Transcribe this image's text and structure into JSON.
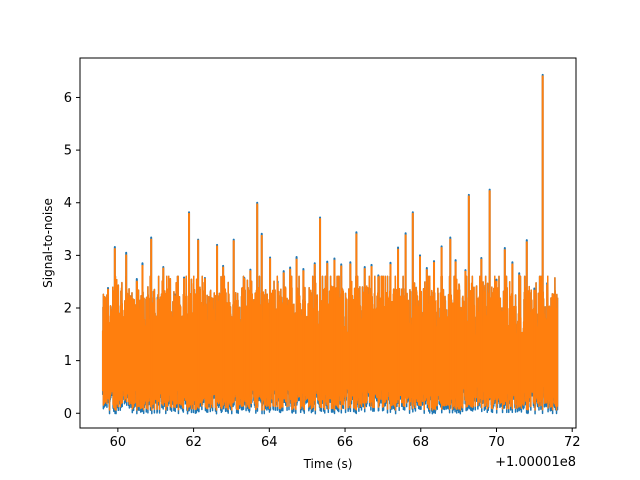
{
  "chart_data": {
    "type": "line",
    "title": "",
    "xlabel": "Time (s)",
    "ylabel": "Signal-to-noise",
    "x_offset_label": "+1.00001e8",
    "xlim": [
      59.0,
      72.1
    ],
    "ylim": [
      -0.28,
      6.75
    ],
    "xticks": [
      60,
      62,
      64,
      66,
      68,
      70,
      72
    ],
    "yticks": [
      0,
      1,
      2,
      3,
      4,
      5,
      6
    ],
    "grid": false,
    "x_range": [
      59.6,
      71.62
    ],
    "series": [
      {
        "color": "#1f77b4",
        "peaks": [
          [
            59.63,
            1.3
          ],
          [
            59.74,
            2.38
          ],
          [
            59.92,
            3.16
          ],
          [
            60.22,
            3.05
          ],
          [
            60.35,
            2.22
          ],
          [
            60.5,
            2.55
          ],
          [
            60.65,
            2.85
          ],
          [
            60.88,
            3.34
          ],
          [
            61.05,
            2.2
          ],
          [
            61.2,
            2.78
          ],
          [
            61.5,
            2.26
          ],
          [
            61.75,
            2.58
          ],
          [
            61.88,
            3.82
          ],
          [
            62.12,
            3.3
          ],
          [
            62.3,
            2.57
          ],
          [
            62.62,
            3.2
          ],
          [
            62.78,
            2.8
          ],
          [
            63.06,
            3.3
          ],
          [
            63.34,
            2.57
          ],
          [
            63.5,
            2.73
          ],
          [
            63.68,
            4.0
          ],
          [
            63.8,
            3.41
          ],
          [
            64.02,
            2.96
          ],
          [
            64.22,
            2.5
          ],
          [
            64.38,
            2.7
          ],
          [
            64.55,
            2.77
          ],
          [
            64.72,
            2.97
          ],
          [
            64.9,
            2.74
          ],
          [
            65.2,
            2.85
          ],
          [
            65.34,
            3.72
          ],
          [
            65.53,
            2.88
          ],
          [
            65.72,
            2.94
          ],
          [
            65.9,
            2.83
          ],
          [
            66.14,
            2.87
          ],
          [
            66.3,
            3.44
          ],
          [
            66.52,
            2.78
          ],
          [
            66.7,
            2.82
          ],
          [
            66.88,
            2.62
          ],
          [
            67.2,
            2.86
          ],
          [
            67.4,
            3.15
          ],
          [
            67.6,
            3.42
          ],
          [
            67.79,
            3.82
          ],
          [
            67.98,
            3.0
          ],
          [
            68.16,
            2.76
          ],
          [
            68.35,
            2.89
          ],
          [
            68.55,
            3.17
          ],
          [
            68.78,
            3.34
          ],
          [
            68.92,
            2.91
          ],
          [
            69.18,
            2.72
          ],
          [
            69.27,
            4.15
          ],
          [
            69.6,
            2.95
          ],
          [
            69.82,
            4.25
          ],
          [
            70.0,
            2.54
          ],
          [
            70.22,
            3.14
          ],
          [
            70.42,
            2.87
          ],
          [
            70.6,
            2.66
          ],
          [
            70.8,
            3.29
          ],
          [
            71.0,
            2.37
          ],
          [
            71.22,
            6.43
          ],
          [
            71.34,
            2.47
          ],
          [
            71.52,
            2.25
          ]
        ]
      },
      {
        "color": "#ff7f0e",
        "peaks": [
          [
            59.63,
            1.25
          ],
          [
            59.74,
            2.35
          ],
          [
            59.92,
            3.12
          ],
          [
            60.22,
            3.0
          ],
          [
            60.35,
            2.2
          ],
          [
            60.5,
            2.5
          ],
          [
            60.65,
            2.8
          ],
          [
            60.88,
            3.3
          ],
          [
            61.05,
            2.15
          ],
          [
            61.2,
            2.75
          ],
          [
            61.5,
            2.22
          ],
          [
            61.75,
            2.55
          ],
          [
            61.88,
            3.79
          ],
          [
            62.12,
            3.28
          ],
          [
            62.3,
            2.55
          ],
          [
            62.62,
            3.17
          ],
          [
            62.78,
            2.77
          ],
          [
            63.06,
            3.27
          ],
          [
            63.34,
            2.55
          ],
          [
            63.5,
            2.7
          ],
          [
            63.68,
            3.97
          ],
          [
            63.8,
            3.37
          ],
          [
            64.02,
            2.93
          ],
          [
            64.22,
            2.46
          ],
          [
            64.38,
            2.66
          ],
          [
            64.55,
            2.73
          ],
          [
            64.72,
            2.92
          ],
          [
            64.9,
            2.7
          ],
          [
            65.2,
            2.82
          ],
          [
            65.34,
            3.69
          ],
          [
            65.53,
            2.84
          ],
          [
            65.72,
            2.9
          ],
          [
            65.9,
            2.79
          ],
          [
            66.14,
            2.83
          ],
          [
            66.3,
            3.4
          ],
          [
            66.52,
            2.74
          ],
          [
            66.7,
            2.78
          ],
          [
            66.88,
            2.58
          ],
          [
            67.2,
            2.82
          ],
          [
            67.4,
            3.11
          ],
          [
            67.6,
            3.38
          ],
          [
            67.79,
            3.79
          ],
          [
            67.98,
            2.97
          ],
          [
            68.16,
            2.72
          ],
          [
            68.35,
            2.86
          ],
          [
            68.55,
            3.14
          ],
          [
            68.78,
            3.3
          ],
          [
            68.92,
            2.87
          ],
          [
            69.18,
            2.69
          ],
          [
            69.27,
            4.12
          ],
          [
            69.6,
            2.92
          ],
          [
            69.82,
            4.22
          ],
          [
            70.0,
            2.5
          ],
          [
            70.22,
            3.1
          ],
          [
            70.42,
            2.83
          ],
          [
            70.6,
            2.62
          ],
          [
            70.8,
            3.25
          ],
          [
            71.0,
            2.33
          ],
          [
            71.22,
            6.4
          ],
          [
            71.34,
            2.43
          ],
          [
            71.52,
            2.2
          ]
        ]
      }
    ]
  }
}
